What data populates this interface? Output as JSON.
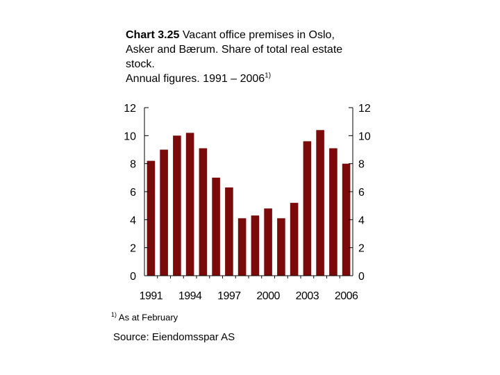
{
  "title": {
    "bold": "Chart 3.25",
    "line1": " Vacant office premises in Oslo,",
    "line2": "Asker and Bærum. Share of total real estate",
    "line3": "stock.",
    "line4": "Annual figures. 1991 – 2006",
    "line4_sup": "1)"
  },
  "footnote": {
    "mark": "1)",
    "text": " As at February"
  },
  "source": "Source: Eiendomsspar AS",
  "colors": {
    "bar": "#7b0a0a",
    "axis": "#000000"
  },
  "chart_data": {
    "type": "bar",
    "categories": [
      "1991",
      "1992",
      "1993",
      "1994",
      "1995",
      "1996",
      "1997",
      "1998",
      "1999",
      "2000",
      "2001",
      "2002",
      "2003",
      "2004",
      "2005",
      "2006"
    ],
    "values": [
      8.2,
      9.0,
      10.0,
      10.2,
      9.1,
      7.0,
      6.3,
      4.1,
      4.3,
      4.8,
      4.1,
      5.2,
      9.6,
      10.4,
      9.1,
      8.0
    ],
    "x_tick_labels": [
      "1991",
      "1994",
      "1997",
      "2000",
      "2003",
      "2006"
    ],
    "y_ticks": [
      "0",
      "2",
      "4",
      "6",
      "8",
      "10",
      "12"
    ],
    "ylim": [
      0,
      12
    ],
    "grid": false,
    "y_axis": "left and right"
  }
}
